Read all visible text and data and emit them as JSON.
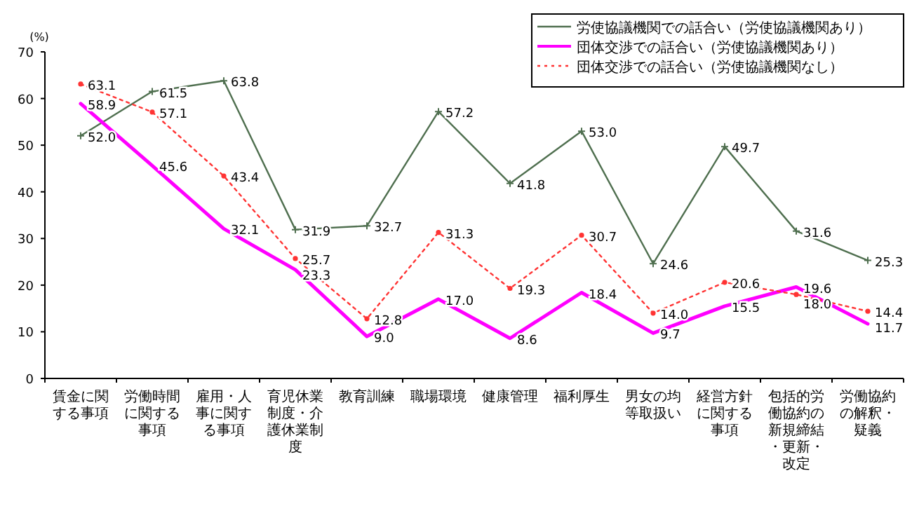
{
  "chart_data": {
    "type": "line",
    "ylabel": "(%)",
    "categories": [
      "賃金に関する事項",
      "労働時間に関する事項",
      "雇用・人事に関する事項",
      "育児休業制度・介護休業制度",
      "教育訓練",
      "職場環境",
      "健康管理",
      "福利厚生",
      "男女の均等取扱い",
      "経営方針に関する事項",
      "包括的労働協約の新規締結・更新・改定",
      "労働協約の解釈・疑義"
    ],
    "series": [
      {
        "name": "労使協議機関での話合い（労使協議機関あり）",
        "color": "#4f6f4f",
        "line_style": "solid",
        "marker": "cross",
        "values": [
          52.0,
          61.5,
          63.8,
          31.9,
          32.7,
          57.2,
          41.8,
          53.0,
          24.6,
          49.7,
          31.6,
          25.3
        ],
        "value_labels": [
          "52.0",
          "61.5",
          "63.8",
          "31.9",
          "32.7",
          "57.2",
          "41.8",
          "53.0",
          "24.6",
          "49.7",
          "31.6",
          "25.3"
        ]
      },
      {
        "name": "団体交渉での話合い（労使協議機関あり）",
        "color": "#ff00ff",
        "line_style": "solid",
        "marker": "none",
        "values": [
          58.9,
          45.6,
          32.1,
          23.3,
          9.0,
          17.0,
          8.6,
          18.4,
          9.7,
          15.5,
          19.6,
          11.7
        ],
        "value_labels": [
          "58.9",
          "45.6",
          "32.1",
          "23.3",
          "9.0",
          "17.0",
          "8.6",
          "18.4",
          "9.7",
          "15.5",
          "19.6",
          "11.7"
        ]
      },
      {
        "name": "団体交渉での話合い（労使協議機関なし）",
        "color": "#ff3333",
        "line_style": "dotted",
        "marker": "circle",
        "values": [
          63.1,
          57.1,
          43.4,
          25.7,
          12.8,
          31.3,
          19.3,
          30.7,
          14.0,
          20.6,
          18.0,
          14.4
        ],
        "value_labels": [
          "63.1",
          "57.1",
          "43.4",
          "25.7",
          "12.8",
          "31.3",
          "19.3",
          "30.7",
          "14.0",
          "20.6",
          "18.0",
          "14.4"
        ]
      }
    ],
    "ylim": [
      0,
      70
    ],
    "yticks": [
      0,
      10,
      20,
      30,
      40,
      50,
      60,
      70
    ],
    "grid": false,
    "legend": "top right"
  }
}
